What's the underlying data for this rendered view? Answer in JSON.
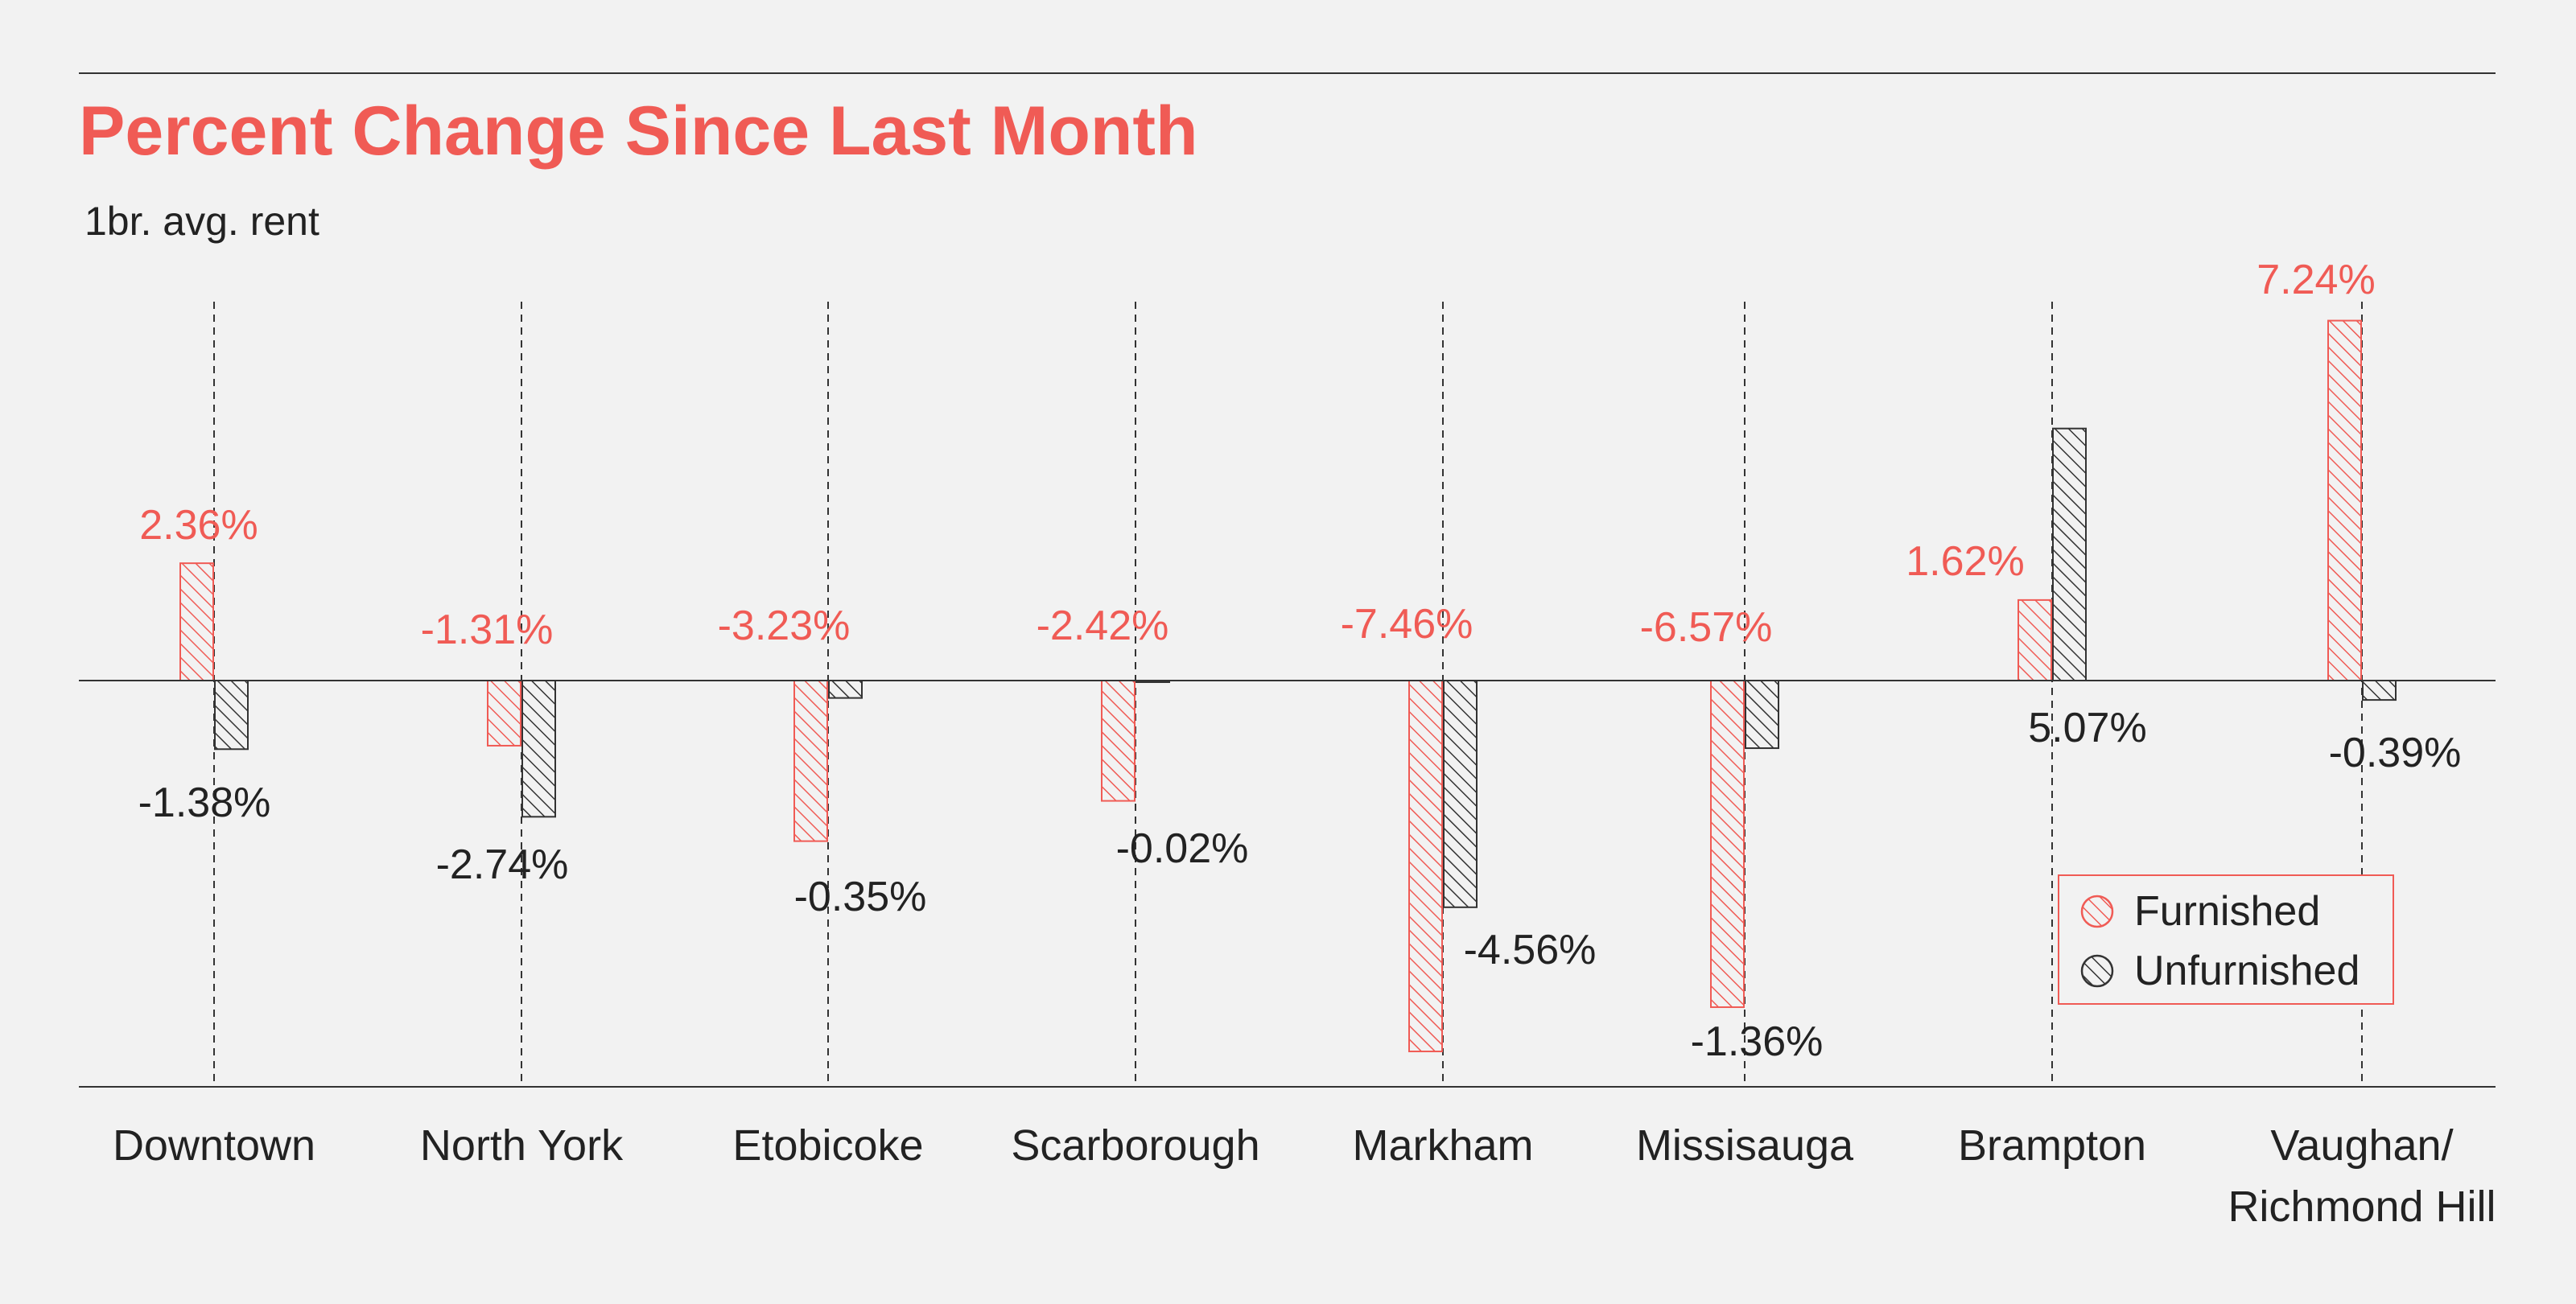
{
  "colors": {
    "furnished": "#f05b55",
    "unfunished_stroke": "#333333",
    "background": "#f2f2f2",
    "title": "#f05b55",
    "text": "#222222"
  },
  "chart_data": {
    "type": "bar",
    "title": "Percent Change Since Last Month",
    "subtitle": "1br. avg. rent",
    "categories": [
      "Downtown",
      "North York",
      "Etobicoke",
      "Scarborough",
      "Markham",
      "Missisauga",
      "Brampton",
      "Vaughan/ Richmond Hill"
    ],
    "category_lines": [
      [
        "Downtown"
      ],
      [
        "North York"
      ],
      [
        "Etobicoke"
      ],
      [
        "Scarborough"
      ],
      [
        "Markham"
      ],
      [
        "Missisauga"
      ],
      [
        "Brampton"
      ],
      [
        "Vaughan/",
        "Richmond Hill"
      ]
    ],
    "series": [
      {
        "name": "Furnished",
        "values": [
          2.36,
          -1.31,
          -3.23,
          -2.42,
          -7.46,
          -6.57,
          1.62,
          7.24
        ],
        "labels": [
          "2.36%",
          "-1.31%",
          "-3.23%",
          "-2.42%",
          "-7.46%",
          "-6.57%",
          "1.62%",
          "7.24%"
        ]
      },
      {
        "name": "Unfurnished",
        "values": [
          -1.38,
          -2.74,
          -0.35,
          -0.02,
          -4.56,
          -1.36,
          5.07,
          -0.39
        ],
        "labels": [
          "-1.38%",
          "-2.74%",
          "-0.35%",
          "-0.02%",
          "-4.56%",
          "-1.36%",
          "5.07%",
          "-0.39%"
        ]
      }
    ],
    "ylim": [
      -8.2,
      8.5
    ],
    "legend": "bottom-right",
    "grid": "vertical dashed lines per category"
  }
}
